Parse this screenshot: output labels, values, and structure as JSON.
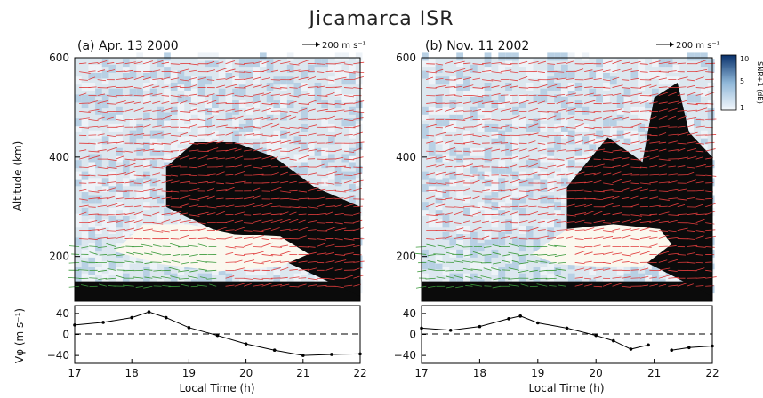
{
  "figure_title": "Jicamarca ISR",
  "colorbar": {
    "label": "SNR+1 (dB)",
    "ticks": [
      "10",
      "5",
      "1"
    ]
  },
  "chart_data": [
    {
      "type": "heatmap",
      "panel_label": "(a) Apr. 13 2000",
      "scale_label": "200 m s⁻¹",
      "ylabel": "Altitude (km)",
      "x_ticks": [
        "17",
        "18",
        "19",
        "20",
        "21",
        "22"
      ],
      "y_ticks": [
        "200",
        "400",
        "600"
      ],
      "xlim": [
        17,
        22
      ],
      "ylim": [
        110,
        600
      ],
      "grid": false,
      "lower": {
        "type": "line",
        "ylabel": "Vφ (m s⁻¹)",
        "xlabel": "Local Time (h)",
        "x_ticks": [
          "17",
          "18",
          "19",
          "20",
          "21",
          "22"
        ],
        "y_ticks": [
          "40",
          "0",
          "−40"
        ],
        "ylim": [
          -55,
          55
        ],
        "zero_line": "dashed",
        "x": [
          17.0,
          17.5,
          18.0,
          18.3,
          18.6,
          19.0,
          19.5,
          20.0,
          20.5,
          21.0,
          21.5,
          22.0
        ],
        "y": [
          18,
          23,
          32,
          43,
          32,
          13,
          -2,
          -18,
          -30,
          -40,
          -38,
          -37
        ]
      }
    },
    {
      "type": "heatmap",
      "panel_label": "(b) Nov. 11 2002",
      "scale_label": "200 m s⁻¹",
      "ylabel": "",
      "x_ticks": [
        "17",
        "18",
        "19",
        "20",
        "21",
        "22"
      ],
      "y_ticks": [
        "200",
        "400",
        "600"
      ],
      "xlim": [
        17,
        22
      ],
      "ylim": [
        110,
        600
      ],
      "grid": false,
      "lower": {
        "type": "line",
        "ylabel": "",
        "xlabel": "Local Time (h)",
        "x_ticks": [
          "17",
          "18",
          "19",
          "20",
          "21",
          "22"
        ],
        "y_ticks": [
          "40",
          "0",
          "−40"
        ],
        "ylim": [
          -55,
          55
        ],
        "zero_line": "dashed",
        "x": [
          17.0,
          17.5,
          18.0,
          18.5,
          18.7,
          19.0,
          19.5,
          20.0,
          20.3,
          20.6,
          20.9
        ],
        "y": [
          12,
          8,
          15,
          30,
          35,
          22,
          12,
          -2,
          -12,
          -28,
          -20
        ],
        "x2": [
          21.3,
          21.6,
          22.0
        ],
        "y2": [
          -30,
          -25,
          -22
        ]
      }
    }
  ]
}
